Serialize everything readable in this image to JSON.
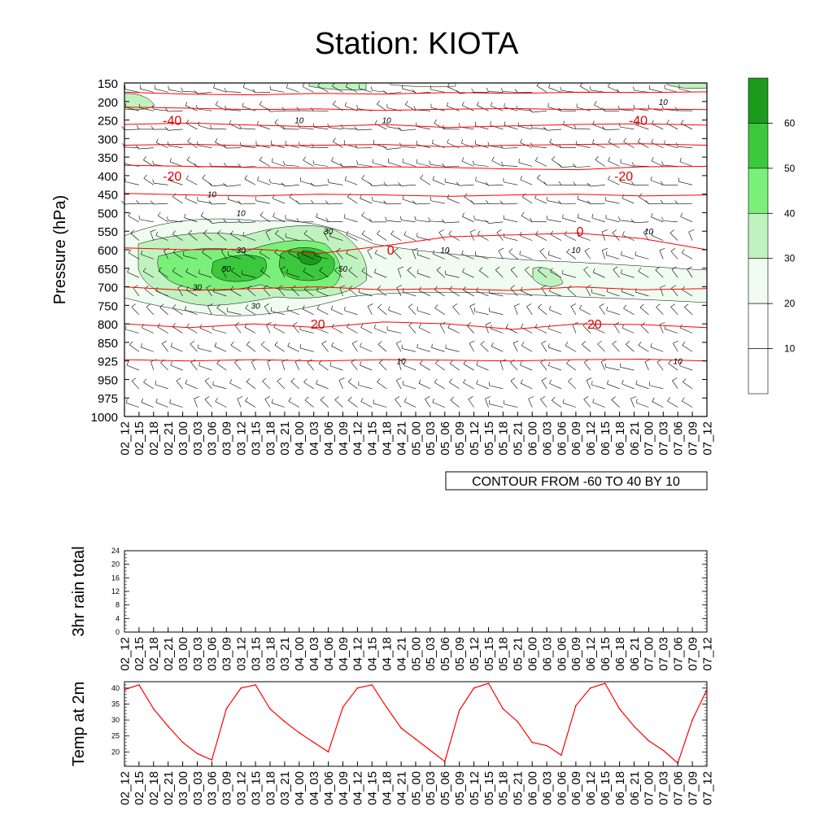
{
  "title": "Station: KIOTA",
  "colors": {
    "shade": [
      "#ffffff",
      "#f0fcf0",
      "#c0f2c0",
      "#7af07a",
      "#3cc83c",
      "#1c9a1c"
    ],
    "temp_contour": "#ff0000",
    "barb": "#000000"
  },
  "time_labels": [
    "02_12",
    "02_15",
    "02_18",
    "02_21",
    "03_00",
    "03_03",
    "03_06",
    "03_09",
    "03_12",
    "03_15",
    "03_18",
    "03_21",
    "04_00",
    "04_03",
    "04_06",
    "04_09",
    "04_12",
    "04_15",
    "04_18",
    "04_21",
    "05_00",
    "05_03",
    "05_06",
    "05_09",
    "05_12",
    "05_15",
    "05_18",
    "05_21",
    "06_00",
    "06_03",
    "06_06",
    "06_09",
    "06_12",
    "06_15",
    "06_18",
    "06_21",
    "07_00",
    "07_03",
    "07_06",
    "07_09",
    "07_12"
  ],
  "panels": {
    "sounding": {
      "ylabel": "Pressure (hPa)",
      "pressure_levels": [
        "150",
        "200",
        "250",
        "300",
        "350",
        "400",
        "450",
        "500",
        "550",
        "600",
        "650",
        "700",
        "750",
        "800",
        "850",
        "925",
        "950",
        "975",
        "1000"
      ],
      "colorbar_ticks": [
        "10",
        "20",
        "30",
        "40",
        "50",
        "60"
      ],
      "contour_info": "CONTOUR FROM -60 TO 40 BY 10",
      "contour_labels": [
        {
          "text": "-40",
          "t": 3,
          "p": "250"
        },
        {
          "text": "-40",
          "t": 35,
          "p": "250"
        },
        {
          "text": "-20",
          "t": 3,
          "p": "400"
        },
        {
          "text": "-20",
          "t": 34,
          "p": "400"
        },
        {
          "text": "0",
          "t": 18,
          "p": "600"
        },
        {
          "text": "0",
          "t": 31,
          "p": "550"
        },
        {
          "text": "20",
          "t": 13,
          "p": "800"
        },
        {
          "text": "20",
          "t": 32,
          "p": "800"
        }
      ],
      "shade_labels": [
        {
          "text": "10",
          "t": 12,
          "p": "250"
        },
        {
          "text": "10",
          "t": 18,
          "p": "250"
        },
        {
          "text": "10",
          "t": 37,
          "p": "200"
        },
        {
          "text": "10",
          "t": 6,
          "p": "450"
        },
        {
          "text": "10",
          "t": 8,
          "p": "500"
        },
        {
          "text": "10",
          "t": 22,
          "p": "600"
        },
        {
          "text": "10",
          "t": 31,
          "p": "600"
        },
        {
          "text": "10",
          "t": 36,
          "p": "550"
        },
        {
          "text": "10",
          "t": 19,
          "p": "925"
        },
        {
          "text": "10",
          "t": 38,
          "p": "925"
        },
        {
          "text": "30",
          "t": 8,
          "p": "600"
        },
        {
          "text": "30",
          "t": 14,
          "p": "550"
        },
        {
          "text": "30",
          "t": 5,
          "p": "700"
        },
        {
          "text": "30",
          "t": 9,
          "p": "750"
        },
        {
          "text": "50",
          "t": 7,
          "p": "650"
        },
        {
          "text": "50",
          "t": 15,
          "p": "650"
        }
      ],
      "temp_contours": [
        {
          "level": -60,
          "p": [
            "175",
            "180",
            "182",
            "178",
            "180",
            "176",
            "178",
            "175",
            "176",
            "174"
          ]
        },
        {
          "level": -50,
          "p": [
            "215",
            "218",
            "222",
            "220",
            "224",
            "221",
            "219",
            "222",
            "220",
            "222"
          ]
        },
        {
          "level": -40,
          "p": [
            "262",
            "258",
            "264",
            "268",
            "262",
            "270",
            "266",
            "262",
            "260",
            "264"
          ]
        },
        {
          "level": -30,
          "p": [
            "318",
            "315",
            "320",
            "318",
            "316",
            "322",
            "318",
            "316",
            "314",
            "318"
          ]
        },
        {
          "level": -20,
          "p": [
            "372",
            "375",
            "378",
            "380",
            "376",
            "378",
            "382",
            "384",
            "376",
            "375"
          ]
        },
        {
          "level": -10,
          "p": [
            "448",
            "452",
            "455",
            "450",
            "452",
            "456",
            "452",
            "450",
            "455",
            "452"
          ]
        },
        {
          "level": 0,
          "p": [
            "595",
            "600",
            "598",
            "610",
            "590",
            "565",
            "560",
            "555",
            "570",
            "600"
          ]
        },
        {
          "level": 10,
          "p": [
            "700",
            "710",
            "705",
            "700",
            "708",
            "705",
            "710",
            "700",
            "708",
            "705"
          ]
        },
        {
          "level": 20,
          "p": [
            "800",
            "810",
            "800",
            "810",
            "795",
            "800",
            "815",
            "800",
            "802",
            "810"
          ]
        },
        {
          "level": 30,
          "p": [
            "920",
            "925",
            "920",
            "925",
            "920",
            "922",
            "925",
            "920",
            "918",
            "925"
          ]
        }
      ]
    },
    "rain": {
      "ylabel": "3hr rain total",
      "yticks": [
        "0",
        "4",
        "8",
        "12",
        "16",
        "20",
        "24"
      ],
      "ylim": [
        0,
        24
      ]
    },
    "temp2m": {
      "ylabel": "Temp at 2m",
      "yticks": [
        "20",
        "25",
        "30",
        "35",
        "40"
      ],
      "ylim": [
        15.5,
        42
      ]
    }
  },
  "chart_data": [
    {
      "type": "heatmap",
      "title": "Station: KIOTA",
      "ylabel": "Pressure (hPa)",
      "categories": [
        "02_12",
        "02_15",
        "02_18",
        "02_21",
        "03_00",
        "03_03",
        "03_06",
        "03_09",
        "03_12",
        "03_15",
        "03_18",
        "03_21",
        "04_00",
        "04_03",
        "04_06",
        "04_09",
        "04_12",
        "04_15",
        "04_18",
        "04_21",
        "05_00",
        "05_03",
        "05_06",
        "05_09",
        "05_12",
        "05_15",
        "05_18",
        "05_21",
        "06_00",
        "06_03",
        "06_06",
        "06_09",
        "06_12",
        "06_15",
        "06_18",
        "06_21",
        "07_00",
        "07_03",
        "07_06",
        "07_09",
        "07_12"
      ],
      "annotation": "CONTOUR FROM -60 TO 40 BY 10"
    },
    {
      "type": "line",
      "ylabel": "3hr rain total",
      "ylim": [
        0,
        24
      ],
      "x": [
        "02_12",
        "02_15",
        "02_18",
        "02_21",
        "03_00",
        "03_03",
        "03_06",
        "03_09",
        "03_12",
        "03_15",
        "03_18",
        "03_21",
        "04_00",
        "04_03",
        "04_06",
        "04_09",
        "04_12",
        "04_15",
        "04_18",
        "04_21",
        "05_00",
        "05_03",
        "05_06",
        "05_09",
        "05_12",
        "05_15",
        "05_18",
        "05_21",
        "06_00",
        "06_03",
        "06_06",
        "06_09",
        "06_12",
        "06_15",
        "06_18",
        "06_21",
        "07_00",
        "07_03",
        "07_06",
        "07_09",
        "07_12"
      ],
      "values": [
        0,
        0,
        0,
        0,
        0,
        0,
        0,
        0,
        0,
        0,
        0,
        0,
        0,
        0,
        0,
        0,
        0,
        0,
        0,
        0,
        0,
        0,
        0,
        0,
        0,
        0,
        0,
        0,
        0,
        0,
        0,
        0,
        0,
        0,
        0,
        0,
        0,
        0,
        0,
        0,
        0
      ]
    },
    {
      "type": "line",
      "ylabel": "Temp at 2m",
      "ylim": [
        15.5,
        42
      ],
      "x": [
        "02_12",
        "02_15",
        "02_18",
        "02_21",
        "03_00",
        "03_03",
        "03_06",
        "03_09",
        "03_12",
        "03_15",
        "03_18",
        "03_21",
        "04_00",
        "04_03",
        "04_06",
        "04_09",
        "04_12",
        "04_15",
        "04_18",
        "04_21",
        "05_00",
        "05_03",
        "05_06",
        "05_09",
        "05_12",
        "05_15",
        "05_18",
        "05_21",
        "06_00",
        "06_03",
        "06_06",
        "06_09",
        "06_12",
        "06_15",
        "06_18",
        "06_21",
        "07_00",
        "07_03",
        "07_06",
        "07_09",
        "07_12"
      ],
      "values": [
        39.5,
        41,
        33.5,
        28,
        23,
        19.5,
        17.5,
        33.5,
        40,
        41,
        33.5,
        29.5,
        26,
        23,
        20,
        34,
        40,
        41,
        34,
        27.5,
        24,
        20.5,
        17,
        33,
        40,
        41.5,
        33.5,
        29.5,
        23,
        22,
        19,
        34.5,
        40,
        41.5,
        33.5,
        28,
        23.5,
        20.5,
        16.5,
        30,
        39.5
      ]
    }
  ]
}
